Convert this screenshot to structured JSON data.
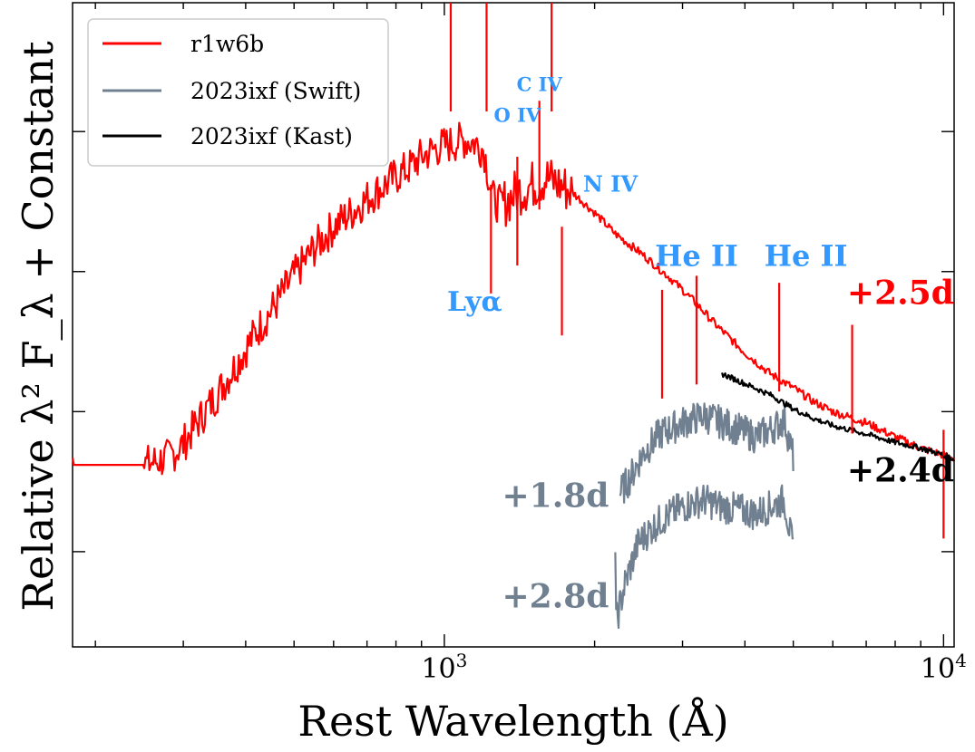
{
  "chart_data": {
    "type": "line",
    "xlabel": "Rest Wavelength (Å)",
    "ylabel": "Relative λ² F_λ + Constant",
    "x_scale": "log",
    "xlim": [
      180,
      10500
    ],
    "ylim": [
      0,
      4.6
    ],
    "x_tick_labels": [
      {
        "value": 1000,
        "base": "10",
        "exp": "3"
      },
      {
        "value": 10000,
        "base": "10",
        "exp": "4"
      }
    ],
    "y_ticks": [
      0.68,
      1.68,
      2.68,
      3.68,
      4.68
    ],
    "legend": {
      "position": "top-left",
      "entries": [
        {
          "label": "r1w6b",
          "color": "#ff0000"
        },
        {
          "label": "2023ixf (Swift)",
          "color": "#708090"
        },
        {
          "label": "2023ixf (Kast)",
          "color": "#000000"
        }
      ]
    },
    "series": [
      {
        "name": "r1w6b",
        "color": "#ff0000",
        "x": [
          180,
          250,
          280,
          300,
          320,
          350,
          380,
          420,
          460,
          500,
          550,
          600,
          650,
          700,
          750,
          800,
          850,
          900,
          950,
          1000,
          1050,
          1100,
          1150,
          1200,
          1250,
          1300,
          1400,
          1500,
          1600,
          1700,
          1800,
          2000,
          2200,
          2500,
          2800,
          3000,
          3200,
          3500,
          4000,
          4500,
          5000,
          5500,
          6000,
          7000,
          8000,
          9000,
          10000,
          10500
        ],
        "y": [
          1.3,
          1.3,
          1.35,
          1.45,
          1.6,
          1.8,
          2.0,
          2.25,
          2.45,
          2.65,
          2.85,
          3.0,
          3.1,
          3.2,
          3.28,
          3.36,
          3.42,
          3.5,
          3.55,
          3.58,
          3.6,
          3.62,
          3.6,
          3.55,
          3.2,
          3.15,
          3.25,
          3.3,
          3.35,
          3.3,
          3.25,
          3.1,
          2.95,
          2.8,
          2.65,
          2.55,
          2.45,
          2.3,
          2.1,
          1.95,
          1.85,
          1.75,
          1.68,
          1.6,
          1.5,
          1.42,
          1.37,
          1.35
        ]
      },
      {
        "name": "2023ixf (Swift)",
        "color": "#708090",
        "epoch": "+1.8d",
        "x": [
          2250,
          2350,
          2500,
          2700,
          3000,
          3300,
          3600,
          3900,
          4200,
          4500,
          4800,
          5000
        ],
        "y": [
          1.1,
          1.2,
          1.38,
          1.52,
          1.6,
          1.65,
          1.6,
          1.55,
          1.5,
          1.55,
          1.62,
          1.35
        ]
      },
      {
        "name": "2023ixf (Swift)",
        "color": "#708090",
        "epoch": "+2.8d",
        "x": [
          2200,
          2300,
          2450,
          2700,
          3000,
          3300,
          3600,
          3900,
          4200,
          4500,
          4800,
          5000
        ],
        "y": [
          0.15,
          0.45,
          0.75,
          0.9,
          1.0,
          1.05,
          1.0,
          0.98,
          0.95,
          1.0,
          1.05,
          0.68
        ]
      },
      {
        "name": "2023ixf (Kast)",
        "color": "#000000",
        "epoch": "+2.4d",
        "x": [
          3600,
          4000,
          4500,
          5000,
          5500,
          6000,
          7000,
          8000,
          9000,
          10000,
          10500
        ],
        "y": [
          1.95,
          1.88,
          1.8,
          1.7,
          1.63,
          1.58,
          1.52,
          1.46,
          1.42,
          1.37,
          1.34
        ]
      }
    ],
    "annotations": {
      "lines": [
        {
          "text": "C IV",
          "x": 1550,
          "y": 3.97,
          "color": "#3399ff",
          "size": 21
        },
        {
          "text": "O IV",
          "x": 1400,
          "y": 3.75,
          "color": "#3399ff",
          "size": 21
        },
        {
          "text": "N IV",
          "x": 2150,
          "y": 3.25,
          "color": "#3399ff",
          "size": 24
        },
        {
          "text": "He II",
          "x": 3200,
          "y": 2.72,
          "color": "#3399ff",
          "size": 32
        },
        {
          "text": "He II",
          "x": 5300,
          "y": 2.72,
          "color": "#3399ff",
          "size": 32
        },
        {
          "text": "Lyα",
          "x": 1150,
          "y": 2.4,
          "color": "#3399ff",
          "size": 30
        }
      ],
      "epochs": [
        {
          "text": "+2.5d",
          "x": 8200,
          "y": 2.45,
          "color": "#ff0000"
        },
        {
          "text": "+2.4d",
          "x": 8200,
          "y": 1.18,
          "color": "#000000"
        },
        {
          "text": "+1.8d",
          "x": 1670,
          "y": 1.0,
          "color": "#708090"
        },
        {
          "text": "+2.8d",
          "x": 1670,
          "y": 0.28,
          "color": "#708090"
        }
      ]
    }
  }
}
